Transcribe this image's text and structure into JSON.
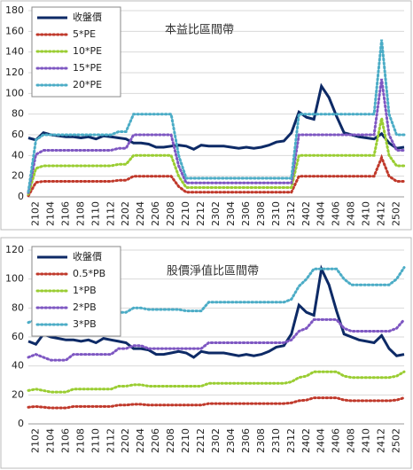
{
  "chart_data": [
    {
      "type": "line",
      "title": "本益比區間帶",
      "categories": [
        null,
        "2102",
        null,
        "2104",
        null,
        "2106",
        null,
        "2108",
        null,
        "2110",
        null,
        "2112",
        null,
        "2202",
        null,
        "2204",
        null,
        "2206",
        null,
        "2208",
        null,
        "2210",
        null,
        "2212",
        null,
        "2302",
        null,
        "2304",
        null,
        "2306",
        null,
        "2308",
        null,
        "2310",
        null,
        "2312",
        null,
        "2402",
        null,
        "2404",
        null,
        "2406",
        null,
        "2408",
        null,
        "2410",
        null,
        "2412",
        null,
        "2502",
        null
      ],
      "ylim": [
        0,
        180
      ],
      "yticks": [
        0,
        20,
        40,
        60,
        80,
        100,
        120,
        140,
        160,
        180
      ],
      "grid": true,
      "series": [
        {
          "name": "收盤價",
          "color": "#0d2a66",
          "style": "solid",
          "values": [
            57,
            55,
            62,
            60,
            59,
            58,
            58,
            57,
            58,
            56,
            59,
            58,
            57,
            56,
            52,
            52,
            51,
            48,
            48,
            49,
            50,
            49,
            46,
            50,
            49,
            49,
            49,
            48,
            47,
            48,
            47,
            48,
            50,
            53,
            54,
            62,
            82,
            77,
            75,
            107,
            96,
            78,
            62,
            60,
            58,
            57,
            56,
            61,
            52,
            47,
            48
          ]
        },
        {
          "name": "5*PE",
          "color": "#c0392b",
          "style": "dotted",
          "values": [
            1,
            14,
            15,
            15,
            15,
            15,
            15,
            15,
            15,
            15,
            15,
            15,
            16,
            16,
            20,
            20,
            20,
            20,
            20,
            20,
            10,
            4.5,
            4.5,
            4.5,
            4.5,
            4.5,
            4.5,
            4.5,
            4.5,
            4.5,
            4.5,
            4.5,
            4.5,
            4.5,
            4.5,
            4.5,
            20,
            20,
            20,
            20,
            20,
            20,
            20,
            20,
            20,
            20,
            20,
            38,
            20,
            15,
            15
          ]
        },
        {
          "name": "10*PE",
          "color": "#9acd32",
          "style": "dotted",
          "values": [
            2.5,
            27.5,
            30,
            30,
            30,
            30,
            30,
            30,
            30,
            30,
            30,
            30,
            31.5,
            31.5,
            40,
            40,
            40,
            40,
            40,
            40,
            20,
            9,
            9,
            9,
            9,
            9,
            9,
            9,
            9,
            9,
            9,
            9,
            9,
            9,
            9,
            9,
            40,
            40,
            40,
            40,
            40,
            40,
            40,
            40,
            40,
            40,
            40,
            76,
            40,
            30,
            30
          ]
        },
        {
          "name": "15*PE",
          "color": "#7e57c2",
          "style": "dotted",
          "values": [
            4,
            41,
            45,
            45,
            45,
            45,
            45,
            45,
            45,
            45,
            45,
            45,
            47,
            47,
            60,
            60,
            60,
            60,
            60,
            60,
            30,
            13.5,
            13.5,
            13.5,
            13.5,
            13.5,
            13.5,
            13.5,
            13.5,
            13.5,
            13.5,
            13.5,
            13.5,
            13.5,
            13.5,
            13.5,
            60,
            60,
            60,
            60,
            60,
            60,
            60,
            60,
            60,
            60,
            60,
            114,
            60,
            45,
            45
          ]
        },
        {
          "name": "20*PE",
          "color": "#4bacc6",
          "style": "dotted",
          "values": [
            5,
            55,
            60,
            60,
            60,
            60,
            60,
            60,
            60,
            60,
            60,
            60,
            63,
            63,
            80,
            80,
            80,
            80,
            80,
            80,
            40,
            18,
            18,
            18,
            18,
            18,
            18,
            18,
            18,
            18,
            18,
            18,
            18,
            18,
            18,
            18,
            80,
            80,
            80,
            80,
            80,
            80,
            80,
            80,
            80,
            80,
            80,
            152,
            80,
            60,
            60
          ]
        }
      ]
    },
    {
      "type": "line",
      "title": "股價淨值比區間帶",
      "categories": [
        null,
        "2102",
        null,
        "2104",
        null,
        "2106",
        null,
        "2108",
        null,
        "2110",
        null,
        "2112",
        null,
        "2202",
        null,
        "2204",
        null,
        "2206",
        null,
        "2208",
        null,
        "2210",
        null,
        "2212",
        null,
        "2302",
        null,
        "2304",
        null,
        "2306",
        null,
        "2308",
        null,
        "2310",
        null,
        "2312",
        null,
        "2402",
        null,
        "2404",
        null,
        "2406",
        null,
        "2408",
        null,
        "2410",
        null,
        "2412",
        null,
        "2502",
        null
      ],
      "ylim": [
        0,
        120
      ],
      "yticks": [
        0,
        20,
        40,
        60,
        80,
        100,
        120
      ],
      "grid": true,
      "series": [
        {
          "name": "收盤價",
          "color": "#0d2a66",
          "style": "solid",
          "values": [
            57,
            55,
            62,
            60,
            59,
            58,
            58,
            57,
            58,
            56,
            59,
            58,
            57,
            56,
            52,
            52,
            51,
            48,
            48,
            49,
            50,
            49,
            46,
            50,
            49,
            49,
            49,
            48,
            47,
            48,
            47,
            48,
            50,
            53,
            54,
            62,
            82,
            77,
            75,
            107,
            96,
            78,
            62,
            60,
            58,
            57,
            56,
            61,
            52,
            47,
            48
          ]
        },
        {
          "name": "0.5*PB",
          "color": "#c0392b",
          "style": "dotted",
          "values": [
            11.5,
            12,
            11.5,
            11,
            11,
            11,
            12,
            12,
            12,
            12,
            12,
            12,
            13,
            13,
            13.5,
            13.5,
            13,
            13,
            13,
            13,
            13,
            13,
            13,
            13,
            14,
            14,
            14,
            14,
            14,
            14,
            14,
            14,
            14,
            14,
            14,
            14.5,
            16,
            16.5,
            18,
            18,
            18,
            18,
            16.5,
            16,
            16,
            16,
            16,
            16,
            16,
            16.5,
            18
          ]
        },
        {
          "name": "1*PB",
          "color": "#9acd32",
          "style": "dotted",
          "values": [
            23,
            24,
            23,
            22,
            22,
            22,
            24,
            24,
            24,
            24,
            24,
            24,
            26,
            26,
            27,
            27,
            26,
            26,
            26,
            26,
            26,
            26,
            26,
            26,
            28,
            28,
            28,
            28,
            28,
            28,
            28,
            28,
            28,
            28,
            28,
            29,
            32,
            33,
            36,
            36,
            36,
            36,
            33,
            32,
            32,
            32,
            32,
            32,
            32,
            33,
            36
          ]
        },
        {
          "name": "2*PB",
          "color": "#7e57c2",
          "style": "dotted",
          "values": [
            46,
            48,
            46,
            44,
            44,
            44,
            48,
            48,
            48,
            48,
            48,
            48,
            52,
            52,
            54,
            54,
            52,
            52,
            52,
            52,
            52,
            52,
            52,
            52,
            56,
            56,
            56,
            56,
            56,
            56,
            56,
            56,
            56,
            56,
            56,
            58,
            64,
            66,
            72,
            72,
            72,
            72,
            66,
            64,
            64,
            64,
            64,
            64,
            64,
            66,
            72
          ]
        },
        {
          "name": "3*PB",
          "color": "#4bacc6",
          "style": "dotted",
          "values": [
            70,
            72,
            70,
            67,
            66,
            65,
            72,
            72,
            72,
            72,
            72,
            72,
            77,
            77,
            80,
            80,
            79,
            79,
            79,
            79,
            79,
            78,
            78,
            78,
            84,
            84,
            84,
            84,
            84,
            84,
            84,
            84,
            84,
            84,
            84,
            86,
            95,
            100,
            107,
            107,
            107,
            107,
            100,
            96,
            96,
            96,
            96,
            96,
            96,
            100,
            108
          ]
        }
      ]
    }
  ]
}
